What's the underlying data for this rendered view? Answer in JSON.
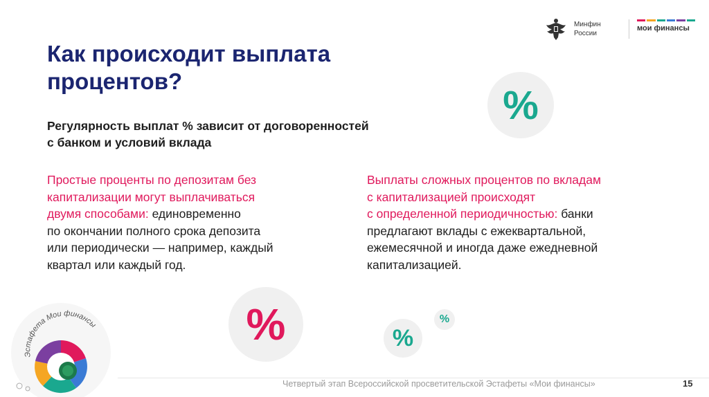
{
  "header": {
    "minfin_line1": "Минфин",
    "minfin_line2": "России",
    "moi_finansy": "мои финансы",
    "moi_bar_colors": [
      "#e0195c",
      "#f5a623",
      "#1aa88f",
      "#3a7bd5",
      "#7b3fa0",
      "#1aa88f"
    ]
  },
  "title": {
    "line1": "Как происходит выплата",
    "line2": "процентов?"
  },
  "subtitle": {
    "line1": "Регулярность выплат % зависит от договоренностей",
    "line2": "с банком и условий вклада"
  },
  "left_column": {
    "highlight_line1": "Простые проценты по депозитам без",
    "highlight_line2": "капитализации могут выплачиваться",
    "highlight_line3": "двумя способами:",
    "rest_line3": " единовременно",
    "line4": "по окончании полного срока депозита",
    "line5": "или периодически — например, каждый",
    "line6": "квартал или каждый год."
  },
  "right_column": {
    "highlight_line1": "Выплаты сложных процентов по вкладам",
    "highlight_line2": "с капитализацией происходят",
    "highlight_line3": "с определенной периодичностью:",
    "rest_line3": " банки",
    "line4": "предлагают вклады с ежеквартальной,",
    "line5": "ежемесячной и иногда даже ежедневной",
    "line6": "капитализацией."
  },
  "percent_symbol": "%",
  "relay_logo_text": "Эстафета Мои финансы",
  "footer": {
    "text": "Четвертый этап Всероссийской просветительской Эстафеты «Мои финансы»",
    "page_number": "15"
  },
  "colors": {
    "title": "#1b2570",
    "accent_pink": "#e0195c",
    "accent_teal": "#1aa88f"
  }
}
